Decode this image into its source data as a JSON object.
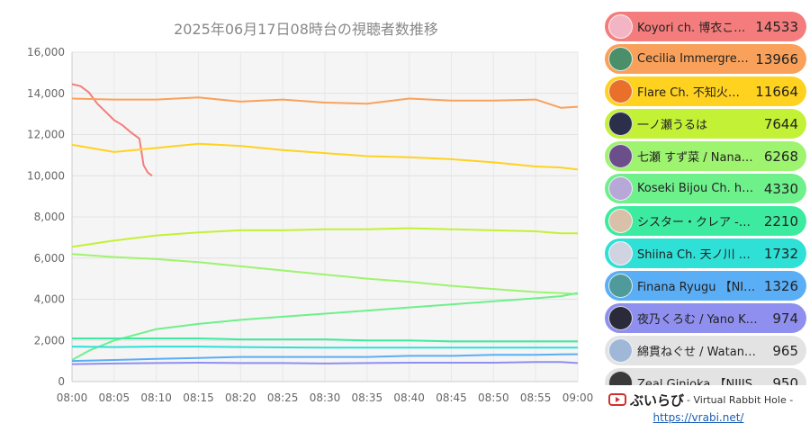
{
  "chart_data": {
    "type": "line",
    "title": "2025年06月17日08時台の視聴者数推移",
    "xlabel": "",
    "ylabel": "",
    "x_ticks": [
      "08:00",
      "08:05",
      "08:10",
      "08:15",
      "08:20",
      "08:25",
      "08:30",
      "08:35",
      "08:40",
      "08:45",
      "08:50",
      "08:55",
      "09:00"
    ],
    "xlim": [
      0,
      60
    ],
    "ylim": [
      0,
      16000
    ],
    "y_ticks": [
      "0",
      "2,000",
      "4,000",
      "6,000",
      "8,000",
      "10,000",
      "12,000",
      "14,000",
      "16,000"
    ],
    "grid": true,
    "legend": "right",
    "series": [
      {
        "name": "Koyori ch. 博衣こ…",
        "color": "#f47c7c",
        "x": [
          0,
          1,
          2,
          3,
          4,
          5,
          6,
          7,
          8,
          8.5,
          9,
          9.5
        ],
        "y": [
          14450,
          14350,
          14050,
          13500,
          13100,
          12700,
          12450,
          12100,
          11800,
          10500,
          10150,
          10000
        ]
      },
      {
        "name": "Cecilia Immergre…",
        "color": "#f9a15a",
        "x": [
          0,
          5,
          10,
          15,
          20,
          25,
          30,
          35,
          40,
          45,
          50,
          55,
          58,
          60
        ],
        "y": [
          13750,
          13700,
          13700,
          13800,
          13600,
          13700,
          13550,
          13500,
          13750,
          13650,
          13650,
          13700,
          13300,
          13350
        ]
      },
      {
        "name": "Flare Ch. 不知火…",
        "color": "#ffd21f",
        "x": [
          0,
          5,
          10,
          15,
          20,
          25,
          30,
          35,
          40,
          45,
          50,
          55,
          58,
          60
        ],
        "y": [
          11500,
          11150,
          11350,
          11550,
          11450,
          11250,
          11100,
          10950,
          10900,
          10800,
          10650,
          10450,
          10400,
          10300
        ]
      },
      {
        "name": "一ノ瀬うるは",
        "color": "#c3f135",
        "x": [
          0,
          5,
          10,
          15,
          20,
          25,
          30,
          35,
          40,
          45,
          50,
          55,
          58,
          60
        ],
        "y": [
          6550,
          6850,
          7100,
          7250,
          7350,
          7350,
          7400,
          7400,
          7450,
          7400,
          7350,
          7300,
          7200,
          7200
        ]
      },
      {
        "name": "七瀬 すず菜 / Nana…",
        "color": "#9ef36f",
        "x": [
          0,
          5,
          10,
          15,
          20,
          25,
          30,
          35,
          40,
          45,
          50,
          55,
          58,
          60
        ],
        "y": [
          6200,
          6050,
          5950,
          5800,
          5600,
          5400,
          5200,
          5000,
          4850,
          4650,
          4500,
          4350,
          4300,
          4250
        ]
      },
      {
        "name": "Koseki Bijou Ch. h…",
        "color": "#6ef08b",
        "x": [
          0,
          2,
          5,
          10,
          15,
          20,
          25,
          30,
          35,
          40,
          45,
          50,
          55,
          58,
          60
        ],
        "y": [
          1050,
          1500,
          2000,
          2550,
          2800,
          3000,
          3150,
          3300,
          3450,
          3600,
          3750,
          3900,
          4050,
          4150,
          4300
        ]
      },
      {
        "name": "シスター・クレア -…",
        "color": "#3deba0",
        "x": [
          0,
          5,
          10,
          15,
          20,
          25,
          30,
          35,
          40,
          45,
          50,
          55,
          58,
          60
        ],
        "y": [
          2100,
          2100,
          2100,
          2100,
          2050,
          2050,
          2050,
          2000,
          2000,
          1950,
          1950,
          1950,
          1950,
          1950
        ]
      },
      {
        "name": "Shiina Ch. 天ノ川 …",
        "color": "#2ee0d6",
        "x": [
          0,
          5,
          10,
          15,
          20,
          25,
          30,
          35,
          40,
          45,
          50,
          55,
          58,
          60
        ],
        "y": [
          1700,
          1680,
          1700,
          1700,
          1680,
          1660,
          1650,
          1650,
          1650,
          1650,
          1650,
          1650,
          1650,
          1650
        ]
      },
      {
        "name": "Finana Ryugu 【NI…",
        "color": "#5aaef5",
        "x": [
          0,
          5,
          10,
          15,
          20,
          25,
          30,
          35,
          40,
          45,
          50,
          55,
          58,
          60
        ],
        "y": [
          1000,
          1050,
          1100,
          1150,
          1200,
          1200,
          1200,
          1200,
          1250,
          1250,
          1300,
          1300,
          1320,
          1330
        ]
      },
      {
        "name": "夜乃くろむ / Yano K…",
        "color": "#8f8ff0",
        "x": [
          0,
          5,
          10,
          15,
          20,
          25,
          30,
          35,
          40,
          45,
          50,
          55,
          58,
          60
        ],
        "y": [
          850,
          880,
          900,
          920,
          900,
          900,
          880,
          900,
          920,
          920,
          920,
          950,
          950,
          900
        ]
      },
      {
        "name": "綿貫ねぐせ / Watan…",
        "color": "#e3e3e3",
        "x": [],
        "y": []
      },
      {
        "name": "Zeal Ginjoka 【NIJIS…",
        "color": "#e3e3e3",
        "x": [],
        "y": []
      }
    ]
  },
  "ranking": [
    {
      "name": "Koyori ch. 博衣こ…",
      "count": "14533",
      "color": "#f47c7c",
      "avatar_color": "#f3b5c3",
      "avatar_icon": "avatar-icon"
    },
    {
      "name": "Cecilia Immergre…",
      "count": "13966",
      "color": "#f9a15a",
      "avatar_color": "#4b8f6a",
      "avatar_icon": "avatar-icon"
    },
    {
      "name": "Flare Ch. 不知火…",
      "count": "11664",
      "color": "#ffd21f",
      "avatar_color": "#e8702a",
      "avatar_icon": "avatar-icon"
    },
    {
      "name": "一ノ瀬うるは",
      "count": "7644",
      "color": "#c3f135",
      "avatar_color": "#2b2f4a",
      "avatar_icon": "avatar-icon"
    },
    {
      "name": "七瀬 すず菜 / Nana…",
      "count": "6268",
      "color": "#9ef36f",
      "avatar_color": "#6b4f8a",
      "avatar_icon": "avatar-icon"
    },
    {
      "name": "Koseki Bijou Ch. h…",
      "count": "4330",
      "color": "#6ef08b",
      "avatar_color": "#b8a8d8",
      "avatar_icon": "avatar-icon"
    },
    {
      "name": "シスター・クレア -…",
      "count": "2210",
      "color": "#3deba0",
      "avatar_color": "#d9c0a8",
      "avatar_icon": "avatar-icon"
    },
    {
      "name": "Shiina Ch. 天ノ川 …",
      "count": "1732",
      "color": "#2ee0d6",
      "avatar_color": "#cfd4e0",
      "avatar_icon": "avatar-icon"
    },
    {
      "name": "Finana Ryugu 【NI…",
      "count": "1326",
      "color": "#5aaef5",
      "avatar_color": "#4f9a9a",
      "avatar_icon": "avatar-icon"
    },
    {
      "name": "夜乃くろむ / Yano K…",
      "count": "974",
      "color": "#8f8ff0",
      "avatar_color": "#2a2a3a",
      "avatar_icon": "avatar-icon"
    },
    {
      "name": "綿貫ねぐせ / Watan…",
      "count": "965",
      "color": "#e3e3e3",
      "avatar_color": "#9fb8d8",
      "avatar_icon": "avatar-icon"
    },
    {
      "name": "Zeal Ginjoka 【NIJIS…",
      "count": "950",
      "color": "#e3e3e3",
      "avatar_color": "#3a3a3a",
      "avatar_icon": "avatar-icon"
    }
  ],
  "brand": {
    "name": "ぶいらび",
    "tagline": "- Virtual Rabbit Hole -",
    "url": "https://vrabi.net/",
    "logo_icon": "play-icon",
    "logo_color": "#d0312d"
  }
}
